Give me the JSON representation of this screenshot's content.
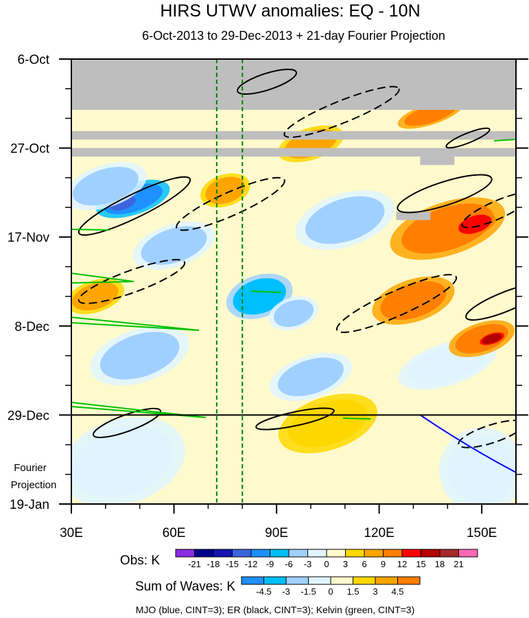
{
  "chart_data": {
    "type": "heatmap",
    "title": "HIRS UTWV anomalies: EQ - 10N",
    "subtitle": "6-Oct-2013 to 29-Dec-2013 + 21-day Fourier Projection",
    "x_ticks": [
      {
        "value": 30,
        "label": "30E"
      },
      {
        "value": 60,
        "label": "60E"
      },
      {
        "value": 90,
        "label": "90E"
      },
      {
        "value": 120,
        "label": "120E"
      },
      {
        "value": 150,
        "label": "150E"
      }
    ],
    "xlim": [
      30,
      160
    ],
    "y_ticks": [
      {
        "value": 0,
        "label": "6-Oct"
      },
      {
        "value": 21,
        "label": "27-Oct"
      },
      {
        "value": 42,
        "label": "17-Nov"
      },
      {
        "value": 63,
        "label": "8-Dec"
      },
      {
        "value": 84,
        "label": "29-Dec"
      },
      {
        "value": 105,
        "label": "19-Jan"
      }
    ],
    "ylim": [
      0,
      105
    ],
    "fourier_label_line1": "Fourier",
    "fourier_label_line2": "Projection",
    "projection_start_day": 84,
    "reference_lines_lon": [
      72.5,
      80
    ],
    "missing_data": [
      {
        "lon": [
          30,
          160
        ],
        "days": [
          0,
          12
        ]
      },
      {
        "lon": [
          30,
          160
        ],
        "days": [
          17,
          19
        ]
      },
      {
        "lon": [
          30,
          160
        ],
        "days": [
          21,
          23
        ]
      },
      {
        "lon": [
          132,
          142
        ],
        "days": [
          23,
          25
        ]
      },
      {
        "lon": [
          125,
          135
        ],
        "days": [
          36,
          38
        ]
      }
    ],
    "obs_colorbar": {
      "label": "Obs: K",
      "levels": [
        "-21",
        "-18",
        "-15",
        "-12",
        "-9",
        "-6",
        "-3",
        "0",
        "3",
        "6",
        "9",
        "12",
        "15",
        "18",
        "21"
      ],
      "colors": [
        "#8a2be2",
        "#00008b",
        "#1414b4",
        "#3c64dc",
        "#1e90ff",
        "#00bfff",
        "#a0d0ff",
        "#dff4ff",
        "#fffacd",
        "#ffd700",
        "#ffa500",
        "#ff7f00",
        "#ff0000",
        "#b40000",
        "#a52a2a",
        "#ff69b4"
      ]
    },
    "waves_colorbar": {
      "label": "Sum of Waves: K",
      "levels": [
        "-4.5",
        "-3",
        "-1.5",
        "0",
        "1.5",
        "3",
        "4.5"
      ],
      "colors": [
        "#1e90ff",
        "#00bfff",
        "#a0d0ff",
        "#dff4ff",
        "#fffacd",
        "#ffd700",
        "#ffa500",
        "#ff7f00"
      ]
    },
    "contour_note": "MJO (blue, CINT=3); ER (black, CINT=3); Kelvin (green, CINT=3)",
    "series": [
      {
        "name": "MJO",
        "color": "#0000ff",
        "cint": 3
      },
      {
        "name": "ER",
        "color": "#000000",
        "cint": 3
      },
      {
        "name": "Kelvin",
        "color": "#00c000",
        "cint": 3
      }
    ],
    "anomaly_blobs": [
      {
        "lon": 48,
        "day": 33,
        "rx": 9,
        "ry": 3,
        "value": -12
      },
      {
        "lon": 45,
        "day": 34,
        "rx": 4,
        "ry": 1.5,
        "value": -15
      },
      {
        "lon": 40,
        "day": 30,
        "rx": 10,
        "ry": 4,
        "value": -6
      },
      {
        "lon": 85,
        "day": 56,
        "rx": 8,
        "ry": 4,
        "value": -9
      },
      {
        "lon": 95,
        "day": 60,
        "rx": 6,
        "ry": 3,
        "value": -6
      },
      {
        "lon": 60,
        "day": 44,
        "rx": 10,
        "ry": 4,
        "value": -6
      },
      {
        "lon": 110,
        "day": 38,
        "rx": 12,
        "ry": 5,
        "value": -6
      },
      {
        "lon": 100,
        "day": 75,
        "rx": 10,
        "ry": 4,
        "value": -6
      },
      {
        "lon": 50,
        "day": 70,
        "rx": 12,
        "ry": 5,
        "value": -6
      },
      {
        "lon": 140,
        "day": 72,
        "rx": 12,
        "ry": 4,
        "value": -3
      },
      {
        "lon": 140,
        "day": 40,
        "rx": 14,
        "ry": 5,
        "value": 9
      },
      {
        "lon": 148,
        "day": 39,
        "rx": 5,
        "ry": 2,
        "value": 12
      },
      {
        "lon": 130,
        "day": 57,
        "rx": 10,
        "ry": 4,
        "value": 9
      },
      {
        "lon": 150,
        "day": 66,
        "rx": 8,
        "ry": 3,
        "value": 9
      },
      {
        "lon": 153,
        "day": 66,
        "rx": 3,
        "ry": 1,
        "value": 15
      },
      {
        "lon": 37,
        "day": 56,
        "rx": 7,
        "ry": 3,
        "value": 6
      },
      {
        "lon": 75,
        "day": 31,
        "rx": 6,
        "ry": 3,
        "value": 6
      },
      {
        "lon": 100,
        "day": 20,
        "rx": 8,
        "ry": 3,
        "value": 6
      },
      {
        "lon": 135,
        "day": 13,
        "rx": 8,
        "ry": 2,
        "value": 9
      },
      {
        "lon": 105,
        "day": 86,
        "rx": 12,
        "ry": 5,
        "value": 3
      },
      {
        "lon": 150,
        "day": 97,
        "rx": 10,
        "ry": 8,
        "value": -1.5
      },
      {
        "lon": 45,
        "day": 95,
        "rx": 15,
        "ry": 8,
        "value": -1.5
      }
    ]
  }
}
